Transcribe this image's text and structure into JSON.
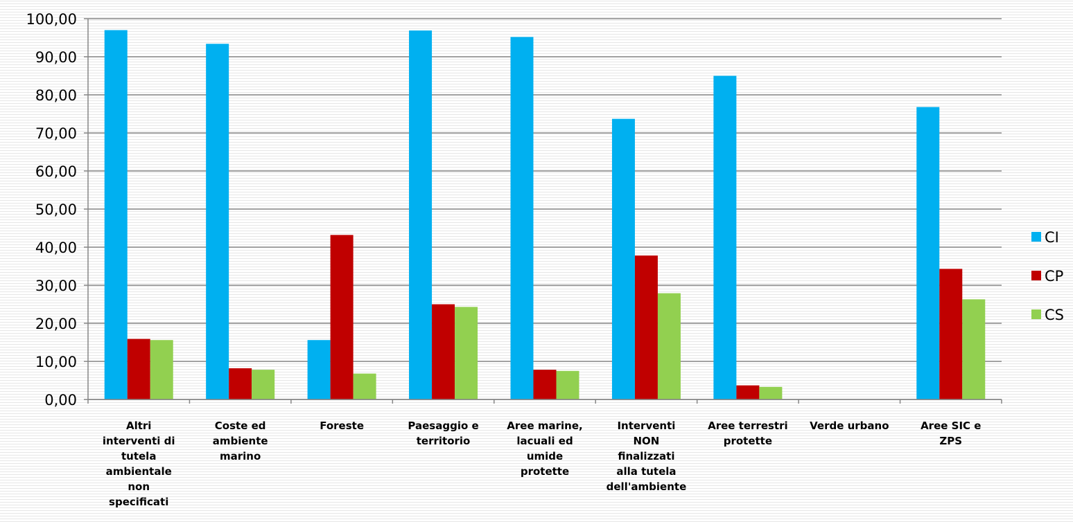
{
  "chart_data": {
    "type": "bar",
    "categories": [
      [
        "Altri",
        "interventi di",
        "tutela",
        "ambientale",
        "non",
        "specificati"
      ],
      [
        "Coste ed",
        "ambiente",
        "marino"
      ],
      [
        "Foreste"
      ],
      [
        "Paesaggio e",
        "territorio"
      ],
      [
        "Aree marine,",
        "lacuali ed",
        "umide",
        "protette"
      ],
      [
        "Interventi",
        "NON",
        "finalizzati",
        "alla tutela",
        "dell'ambiente"
      ],
      [
        "Aree terrestri",
        "protette"
      ],
      [
        "Verde urbano"
      ],
      [
        "Aree SIC e",
        "ZPS"
      ]
    ],
    "series": [
      {
        "name": "CI",
        "color": "#00b0f0",
        "values": [
          97.0,
          93.4,
          15.6,
          96.9,
          95.2,
          73.7,
          85.0,
          0,
          76.8
        ]
      },
      {
        "name": "CP",
        "color": "#c00000",
        "values": [
          15.9,
          8.2,
          43.2,
          25.0,
          7.8,
          37.8,
          3.7,
          0,
          34.3
        ]
      },
      {
        "name": "CS",
        "color": "#92d050",
        "values": [
          15.6,
          7.8,
          6.8,
          24.3,
          7.5,
          27.9,
          3.3,
          0,
          26.3
        ]
      }
    ],
    "ylim": [
      0,
      100
    ],
    "yticks": [
      "0,00",
      "10,00",
      "20,00",
      "30,00",
      "40,00",
      "50,00",
      "60,00",
      "70,00",
      "80,00",
      "90,00",
      "100,00"
    ],
    "grid": true,
    "legend": "right",
    "title": "",
    "xlabel": "",
    "ylabel": ""
  }
}
